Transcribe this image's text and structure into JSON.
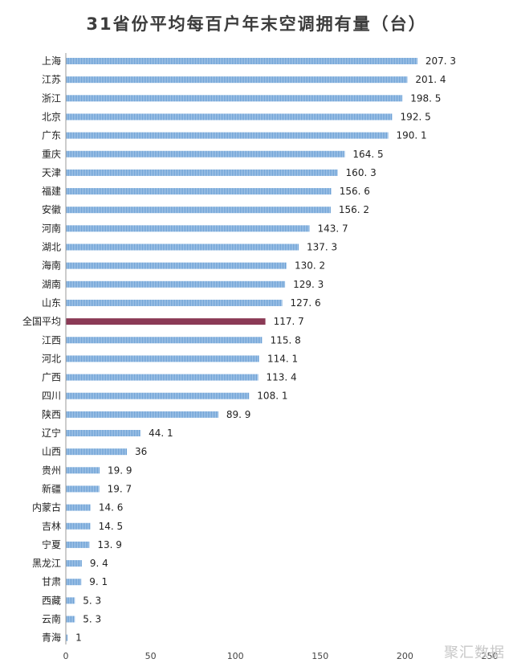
{
  "chart_data": {
    "type": "bar",
    "orientation": "horizontal",
    "title": "31省份平均每百户年末空调拥有量（台）",
    "categories": [
      "上海",
      "江苏",
      "浙江",
      "北京",
      "广东",
      "重庆",
      "天津",
      "福建",
      "安徽",
      "河南",
      "湖北",
      "海南",
      "湖南",
      "山东",
      "全国平均",
      "江西",
      "河北",
      "广西",
      "四川",
      "陕西",
      "辽宁",
      "山西",
      "贵州",
      "新疆",
      "内蒙古",
      "吉林",
      "宁夏",
      "黑龙江",
      "甘肃",
      "西藏",
      "云南",
      "青海"
    ],
    "values": [
      207.3,
      201.4,
      198.5,
      192.5,
      190.1,
      164.5,
      160.3,
      156.6,
      156.2,
      143.7,
      137.3,
      130.2,
      129.3,
      127.6,
      117.7,
      115.8,
      114.1,
      113.4,
      108.1,
      89.9,
      44.1,
      36,
      19.9,
      19.7,
      14.6,
      14.5,
      13.9,
      9.4,
      9.1,
      5.3,
      5.3,
      1
    ],
    "value_labels": [
      "207. 3",
      "201. 4",
      "198. 5",
      "192. 5",
      "190. 1",
      "164. 5",
      "160. 3",
      "156. 6",
      "156. 2",
      "143. 7",
      "137. 3",
      "130. 2",
      "129. 3",
      "127. 6",
      "117. 7",
      "115. 8",
      "114. 1",
      "113. 4",
      "108. 1",
      "89. 9",
      "44. 1",
      "36",
      "19. 9",
      "19. 7",
      "14. 6",
      "14. 5",
      "13. 9",
      "9. 4",
      "9. 1",
      "5. 3",
      "5. 3",
      "1"
    ],
    "highlight_category": "全国平均",
    "xlim": [
      0,
      250
    ],
    "xticks": [
      "0",
      "50",
      "100",
      "150",
      "200",
      "250"
    ],
    "colors": {
      "bar": "#6a9fd4",
      "highlight": "#8b3a56",
      "axis": "#999999"
    }
  },
  "watermark": "聚汇数据"
}
